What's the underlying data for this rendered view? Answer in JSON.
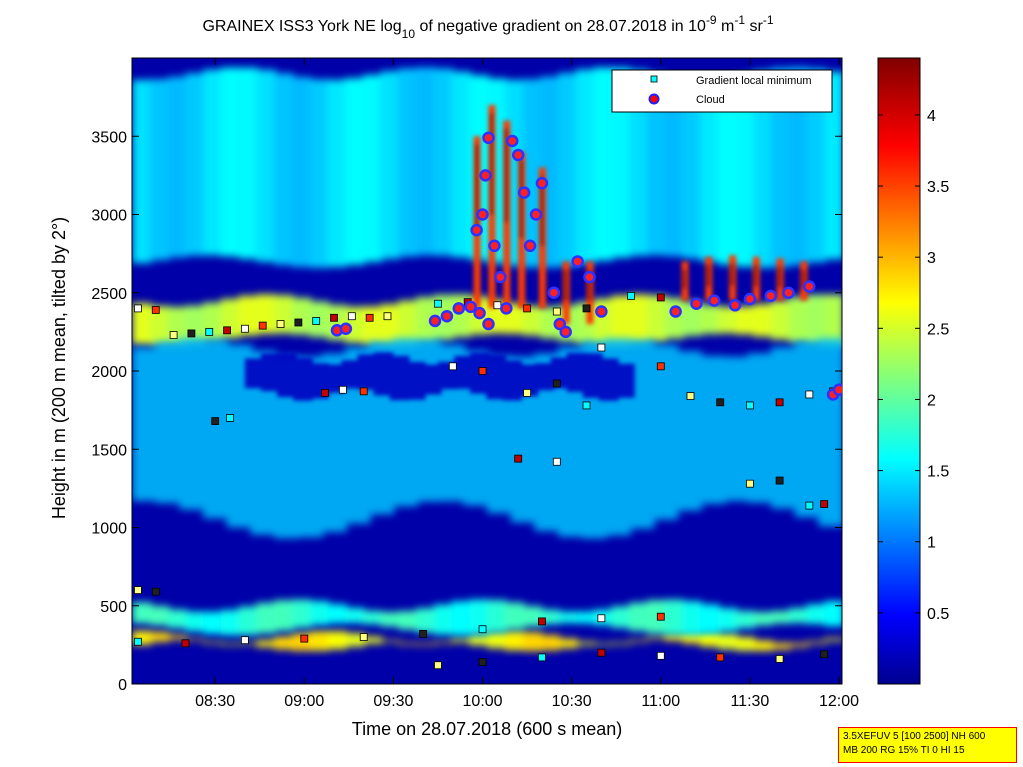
{
  "title": {
    "part1": "GRAINEX ISS3 York NE log",
    "sub": "10",
    "part2": " of negative gradient on 28.07.2018 in 10",
    "sup1": "-9",
    "part3": " m",
    "sup2": "-1",
    "part4": " sr",
    "sup3": "-1"
  },
  "chart_data": {
    "type": "heatmap",
    "xlabel": "Time on 28.07.2018 (600 s mean)",
    "ylabel": "Height in m (200 m mean, tilted by 2°)",
    "x_ticks": [
      "08:30",
      "09:00",
      "09:30",
      "10:00",
      "10:30",
      "11:00",
      "11:30",
      "12:00"
    ],
    "x_tick_minutes": [
      510,
      540,
      570,
      600,
      630,
      660,
      690,
      720
    ],
    "xlim_minutes": [
      482,
      721
    ],
    "y_ticks": [
      0,
      500,
      1000,
      1500,
      2000,
      2500,
      3000,
      3500
    ],
    "ylim": [
      0,
      4000
    ],
    "colorbar": {
      "ticks": [
        0.5,
        1,
        1.5,
        2,
        2.5,
        3,
        3.5,
        4
      ],
      "tick_labels": [
        "0.5",
        "1",
        "1.5",
        "2",
        "2.5",
        "3",
        "3.5",
        "4"
      ],
      "range": [
        0,
        4.4
      ],
      "colormap": "jet"
    },
    "legend": {
      "placement": "top-right",
      "entries": [
        {
          "label": "Gradient local minimum",
          "marker": "square",
          "color": "#00ffff"
        },
        {
          "label": "Cloud",
          "marker": "circle",
          "color": "#ff0000",
          "edge": "#0000ff"
        }
      ]
    },
    "layers": [
      {
        "name": "surface layer",
        "y_start": 250,
        "y_end": 300,
        "value": 2.8
      },
      {
        "name": "lower aerosol layer",
        "y_start": 350,
        "y_end": 500,
        "value": 1.8
      },
      {
        "name": "elevated layer",
        "y_start": 2200,
        "y_end": 2450,
        "value": 2.5
      },
      {
        "name": "upper patches",
        "y_start": 2700,
        "y_end": 3900,
        "value": 1.5
      }
    ],
    "series": [
      {
        "name": "Gradient local minimum",
        "points": [
          [
            484,
            2400
          ],
          [
            490,
            2390
          ],
          [
            496,
            2230
          ],
          [
            502,
            2240
          ],
          [
            508,
            2250
          ],
          [
            514,
            2260
          ],
          [
            520,
            2270
          ],
          [
            526,
            2290
          ],
          [
            532,
            2300
          ],
          [
            538,
            2310
          ],
          [
            544,
            2320
          ],
          [
            550,
            2340
          ],
          [
            556,
            2350
          ],
          [
            562,
            2340
          ],
          [
            568,
            2350
          ],
          [
            510,
            1680
          ],
          [
            515,
            1700
          ],
          [
            547,
            1860
          ],
          [
            553,
            1880
          ],
          [
            560,
            1870
          ],
          [
            484,
            600
          ],
          [
            490,
            590
          ],
          [
            484,
            270
          ],
          [
            500,
            260
          ],
          [
            520,
            280
          ],
          [
            540,
            290
          ],
          [
            560,
            300
          ],
          [
            580,
            320
          ],
          [
            600,
            350
          ],
          [
            620,
            400
          ],
          [
            640,
            420
          ],
          [
            660,
            430
          ],
          [
            585,
            120
          ],
          [
            600,
            140
          ],
          [
            620,
            170
          ],
          [
            640,
            200
          ],
          [
            660,
            180
          ],
          [
            680,
            170
          ],
          [
            700,
            160
          ],
          [
            715,
            190
          ],
          [
            585,
            2430
          ],
          [
            595,
            2440
          ],
          [
            605,
            2420
          ],
          [
            615,
            2400
          ],
          [
            625,
            2380
          ],
          [
            635,
            2400
          ],
          [
            650,
            2480
          ],
          [
            660,
            2470
          ],
          [
            640,
            2150
          ],
          [
            660,
            2030
          ],
          [
            670,
            1840
          ],
          [
            680,
            1800
          ],
          [
            690,
            1780
          ],
          [
            700,
            1800
          ],
          [
            710,
            1850
          ],
          [
            718,
            1870
          ],
          [
            690,
            1280
          ],
          [
            700,
            1300
          ],
          [
            710,
            1140
          ],
          [
            715,
            1150
          ],
          [
            590,
            2030
          ],
          [
            600,
            2000
          ],
          [
            615,
            1860
          ],
          [
            625,
            1920
          ],
          [
            635,
            1780
          ],
          [
            612,
            1440
          ],
          [
            625,
            1420
          ]
        ]
      },
      {
        "name": "Cloud",
        "points": [
          [
            551,
            2260
          ],
          [
            554,
            2270
          ],
          [
            584,
            2320
          ],
          [
            588,
            2350
          ],
          [
            592,
            2400
          ],
          [
            596,
            2410
          ],
          [
            599,
            2370
          ],
          [
            602,
            2300
          ],
          [
            598,
            2900
          ],
          [
            600,
            3000
          ],
          [
            601,
            3250
          ],
          [
            602,
            3490
          ],
          [
            604,
            2800
          ],
          [
            606,
            2600
          ],
          [
            608,
            2400
          ],
          [
            610,
            3470
          ],
          [
            612,
            3380
          ],
          [
            614,
            3140
          ],
          [
            616,
            2800
          ],
          [
            618,
            3000
          ],
          [
            620,
            3200
          ],
          [
            624,
            2500
          ],
          [
            626,
            2300
          ],
          [
            628,
            2250
          ],
          [
            632,
            2700
          ],
          [
            636,
            2600
          ],
          [
            640,
            2380
          ],
          [
            665,
            2380
          ],
          [
            672,
            2430
          ],
          [
            678,
            2450
          ],
          [
            685,
            2420
          ],
          [
            690,
            2460
          ],
          [
            697,
            2480
          ],
          [
            703,
            2500
          ],
          [
            710,
            2540
          ],
          [
            718,
            1850
          ],
          [
            720,
            1880
          ]
        ]
      }
    ]
  },
  "annotation": {
    "line1": "3.5XEFUV 5 [100 2500] NH 600",
    "line2": "MB 200 RG 15% TI 0 HI 15"
  }
}
